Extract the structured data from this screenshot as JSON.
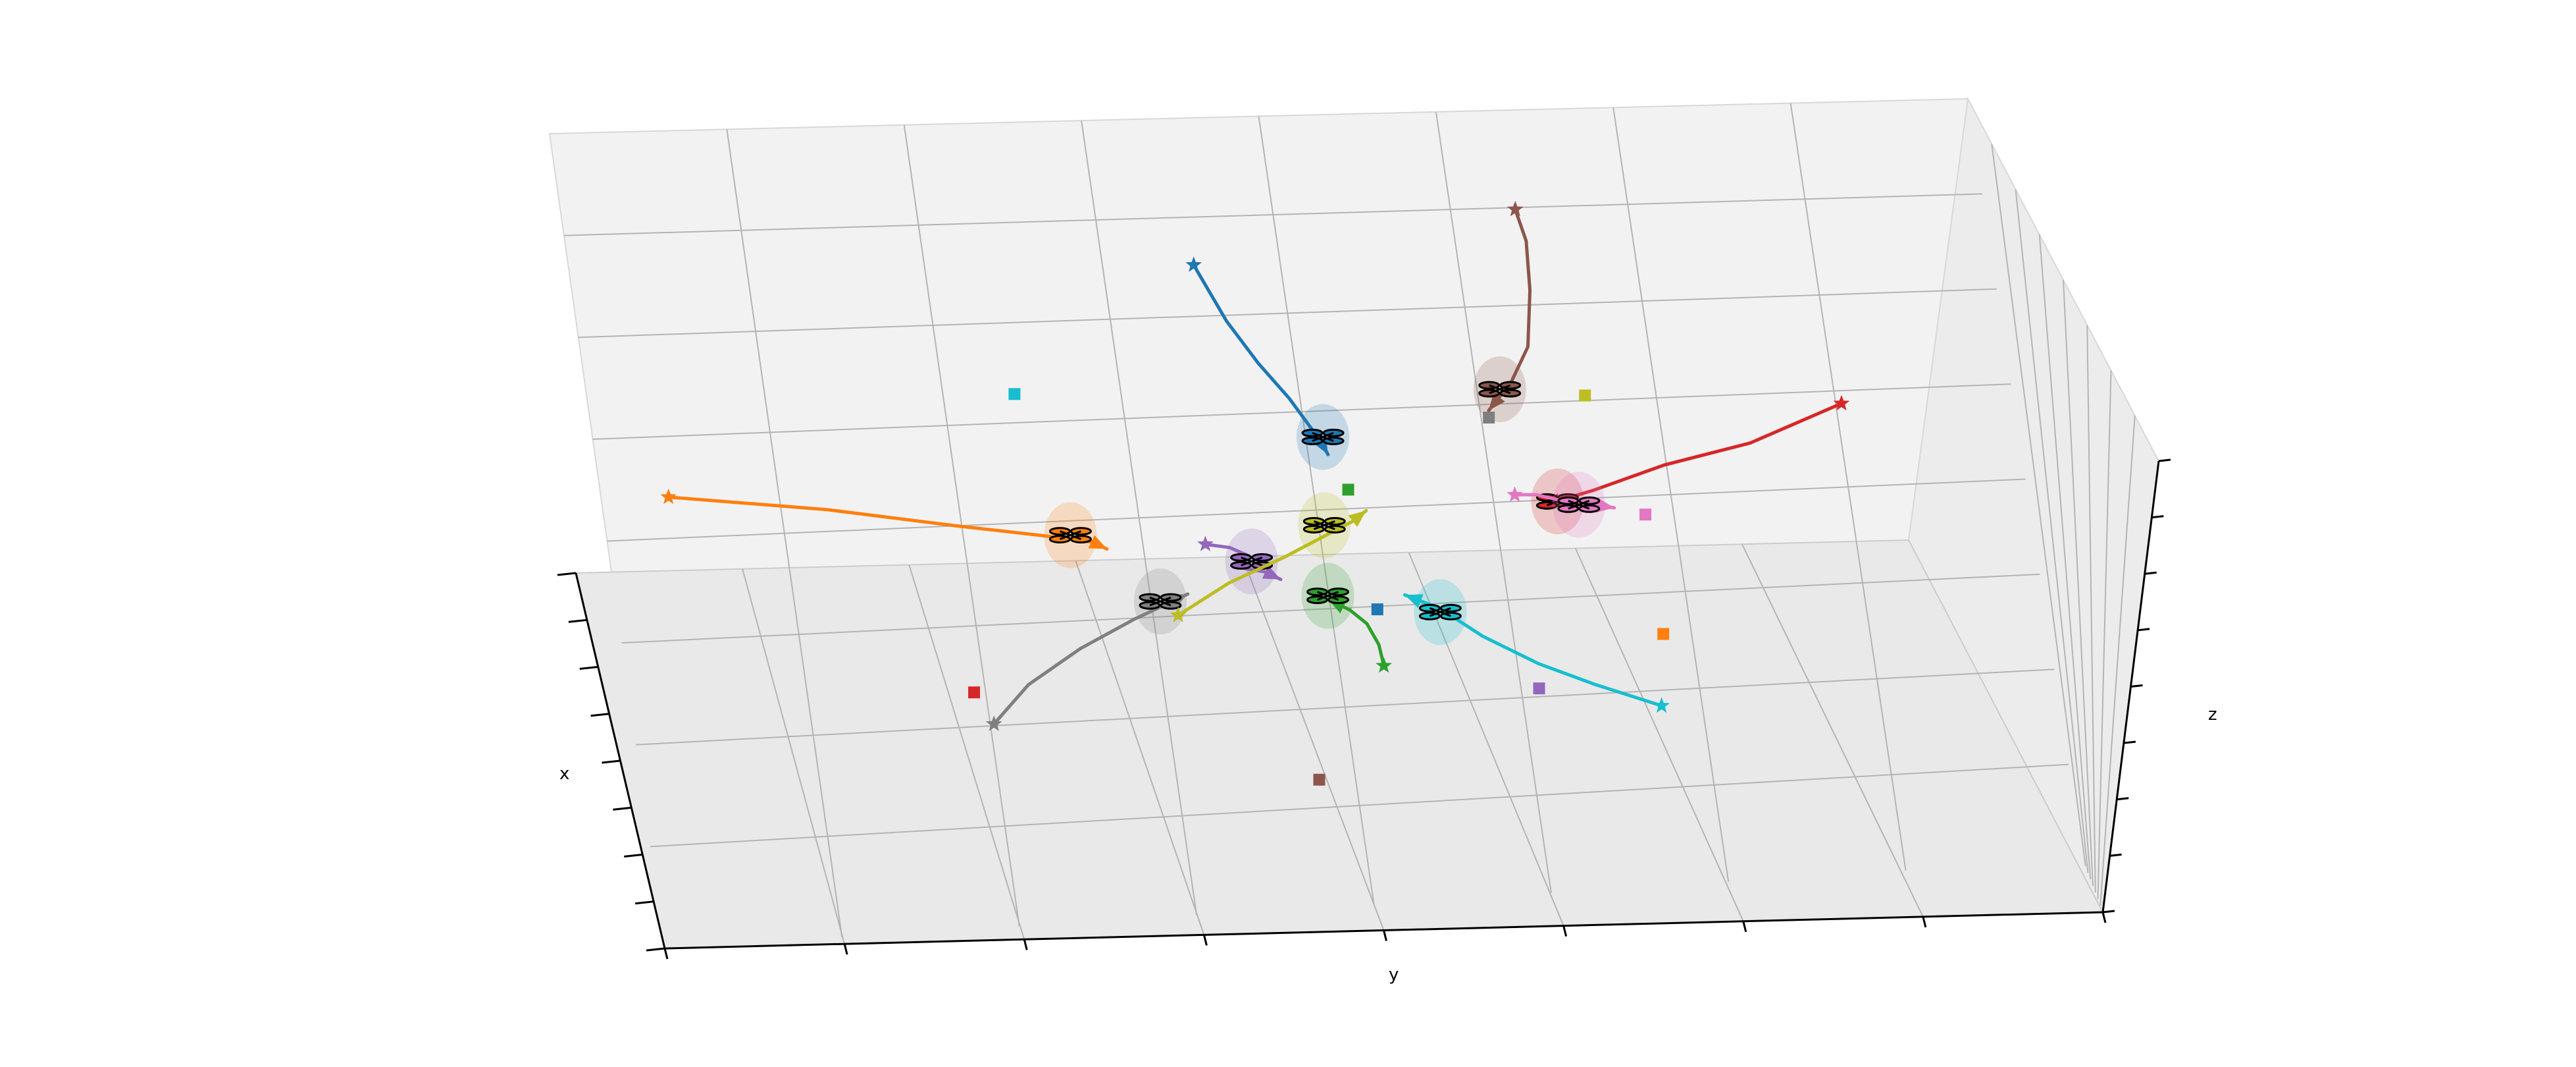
{
  "chart_data": {
    "type": "scatter",
    "title": "",
    "xlabel": "x",
    "ylabel": "y",
    "zlabel": "z",
    "grid": true,
    "legend": "none",
    "drones": [
      {
        "color": "#1f77b4",
        "start": [
          0.45,
          0.26
        ],
        "path": [
          [
            0.45,
            0.26
          ],
          [
            0.47,
            0.34
          ],
          [
            0.49,
            0.4
          ],
          [
            0.51,
            0.45
          ],
          [
            0.53,
            0.51
          ],
          [
            0.535,
            0.53
          ]
        ],
        "position": [
          0.532,
          0.505
        ],
        "goal": [
          0.565,
          0.75
        ]
      },
      {
        "color": "#ff7f0e",
        "start": [
          0.07,
          0.58
        ],
        "path": [
          [
            0.07,
            0.58
          ],
          [
            0.18,
            0.6
          ],
          [
            0.27,
            0.625
          ],
          [
            0.33,
            0.64
          ],
          [
            0.365,
            0.65
          ],
          [
            0.375,
            0.66
          ]
        ],
        "position": [
          0.35,
          0.64
        ],
        "goal": [
          0.77,
          0.79
        ]
      },
      {
        "color": "#2ca02c",
        "start": [
          0.568,
          0.83
        ],
        "path": [
          [
            0.568,
            0.83
          ],
          [
            0.565,
            0.8
          ],
          [
            0.557,
            0.77
          ],
          [
            0.545,
            0.75
          ],
          [
            0.53,
            0.735
          ]
        ],
        "position": [
          0.53,
          0.73
        ],
        "goal": [
          0.548,
          0.58
        ]
      },
      {
        "color": "#d62728",
        "start": [
          0.893,
          0.465
        ],
        "path": [
          [
            0.893,
            0.465
          ],
          [
            0.83,
            0.52
          ],
          [
            0.77,
            0.55
          ],
          [
            0.72,
            0.585
          ],
          [
            0.685,
            0.605
          ]
        ],
        "position": [
          0.695,
          0.6
        ],
        "goal": [
          0.27,
          0.86
        ]
      },
      {
        "color": "#9467bd",
        "start": [
          0.445,
          0.655
        ],
        "path": [
          [
            0.445,
            0.655
          ],
          [
            0.462,
            0.66
          ],
          [
            0.475,
            0.672
          ],
          [
            0.47,
            0.675
          ],
          [
            0.472,
            0.69
          ],
          [
            0.486,
            0.695
          ],
          [
            0.497,
            0.706
          ]
        ],
        "position": [
          0.477,
          0.68
        ],
        "goal": [
          0.68,
          0.865
        ]
      },
      {
        "color": "#8c564b",
        "start": [
          0.669,
          0.185
        ],
        "path": [
          [
            0.669,
            0.185
          ],
          [
            0.676,
            0.23
          ],
          [
            0.678,
            0.3
          ],
          [
            0.676,
            0.38
          ],
          [
            0.664,
            0.43
          ],
          [
            0.648,
            0.47
          ]
        ],
        "position": [
          0.656,
          0.44
        ],
        "goal": [
          0.517,
          0.99
        ]
      },
      {
        "color": "#e377c2",
        "start": [
          0.665,
          0.59
        ],
        "path": [
          [
            0.665,
            0.59
          ],
          [
            0.68,
            0.59
          ],
          [
            0.7,
            0.6
          ],
          [
            0.72,
            0.605
          ],
          [
            0.735,
            0.61
          ]
        ],
        "position": [
          0.71,
          0.605
        ],
        "goal": [
          0.757,
          0.62
        ]
      },
      {
        "color": "#7f7f7f",
        "start": [
          0.282,
          0.905
        ],
        "path": [
          [
            0.282,
            0.905
          ],
          [
            0.31,
            0.85
          ],
          [
            0.35,
            0.8
          ],
          [
            0.39,
            0.76
          ],
          [
            0.43,
            0.725
          ]
        ],
        "position": [
          0.41,
          0.735
        ],
        "goal": [
          0.648,
          0.48
        ]
      },
      {
        "color": "#bcbd22",
        "start": [
          0.422,
          0.755
        ],
        "path": [
          [
            0.422,
            0.755
          ],
          [
            0.46,
            0.71
          ],
          [
            0.5,
            0.675
          ],
          [
            0.53,
            0.645
          ],
          [
            0.55,
            0.625
          ],
          [
            0.56,
            0.61
          ]
        ],
        "position": [
          0.53,
          0.63
        ],
        "goal": [
          0.715,
          0.45
        ]
      },
      {
        "color": "#17becf",
        "start": [
          0.769,
          0.892
        ],
        "path": [
          [
            0.769,
            0.892
          ],
          [
            0.72,
            0.86
          ],
          [
            0.68,
            0.83
          ],
          [
            0.64,
            0.79
          ],
          [
            0.61,
            0.75
          ],
          [
            0.585,
            0.73
          ]
        ],
        "position": [
          0.61,
          0.755
        ],
        "goal": [
          0.32,
          0.44
        ]
      }
    ]
  }
}
